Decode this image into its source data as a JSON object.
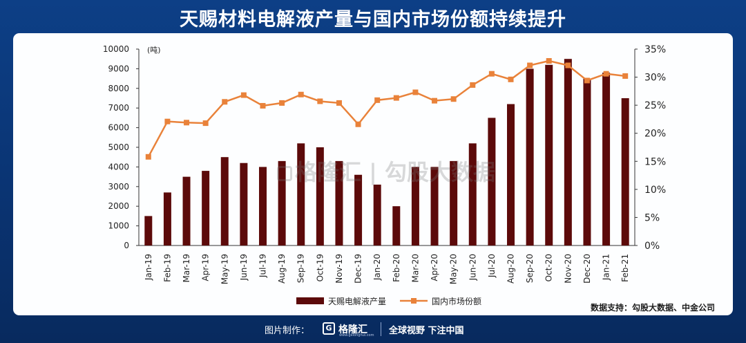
{
  "title": "天赐材料电解液产量与国内市场份额持续提升",
  "source_note": "数据支持：勾股大数据、中金公司",
  "footer": {
    "label": "图片制作：",
    "brand": "格隆汇",
    "brand_sub": "www.gelonghui.com",
    "slogan": "全球视野 下注中国"
  },
  "watermark": {
    "brand": "格隆汇",
    "text": "勾股大数据"
  },
  "colors": {
    "bar": "#5c0a0a",
    "line": "#e9823a",
    "background": "#0b3a7e"
  },
  "chart_data": {
    "type": "bar+line",
    "categories": [
      "Jan-19",
      "Feb-19",
      "Mar-19",
      "Apr-19",
      "May-19",
      "Jun-19",
      "Jul-19",
      "Aug-19",
      "Sep-19",
      "Oct-19",
      "Nov-19",
      "Dec-19",
      "Jan-20",
      "Feb-20",
      "Mar-20",
      "Apr-20",
      "May-20",
      "Jun-20",
      "Jul-20",
      "Aug-20",
      "Sep-20",
      "Oct-20",
      "Nov-20",
      "Dec-20",
      "Jan-21",
      "Feb-21"
    ],
    "y_unit_label": "(吨)",
    "y_left_ticks": [
      "0",
      "1000",
      "2000",
      "3000",
      "4000",
      "5000",
      "6000",
      "7000",
      "8000",
      "9000",
      "10000"
    ],
    "y_right_ticks": [
      "0%",
      "5%",
      "10%",
      "15%",
      "20%",
      "25%",
      "30%",
      "35%"
    ],
    "y_left_range": [
      0,
      10000
    ],
    "y_right_range": [
      0,
      35
    ],
    "series": [
      {
        "name": "天赐电解液产量",
        "type": "bar",
        "axis": "left",
        "values": [
          1500,
          2700,
          3500,
          3800,
          4500,
          4200,
          4000,
          4300,
          5200,
          5000,
          4300,
          3600,
          3100,
          2000,
          4000,
          4000,
          4300,
          5200,
          6500,
          7200,
          9000,
          9200,
          9500,
          8500,
          8800,
          7500
        ]
      },
      {
        "name": "国内市场份额",
        "type": "line",
        "axis": "right",
        "values": [
          15.8,
          22.1,
          21.9,
          21.8,
          25.6,
          26.8,
          24.9,
          25.4,
          26.9,
          25.7,
          25.4,
          21.6,
          25.9,
          26.3,
          27.3,
          25.8,
          26.1,
          28.6,
          30.6,
          29.6,
          32.1,
          32.9,
          32.1,
          29.4,
          30.6,
          30.2
        ]
      }
    ],
    "legend_position": "bottom"
  }
}
